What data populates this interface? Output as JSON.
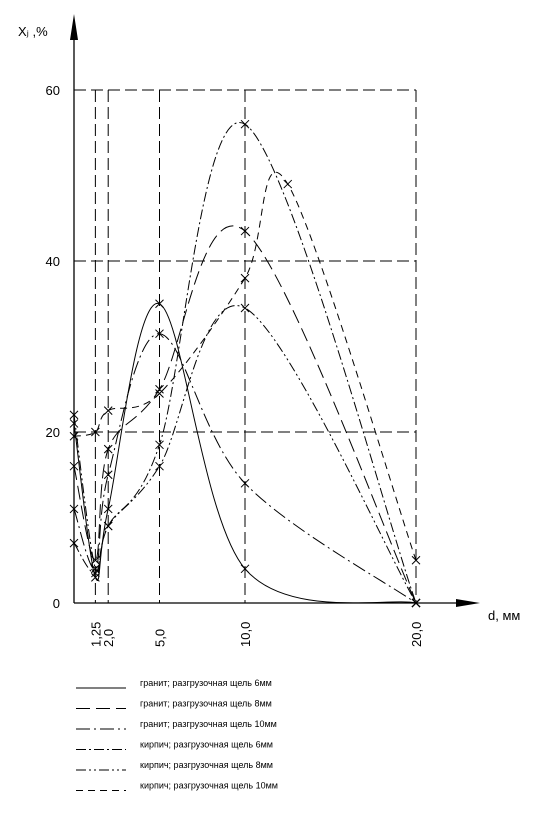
{
  "chart_data": {
    "type": "line",
    "ylabel": "Xⱼ ,%",
    "xlabel": "d, мм",
    "ylim": [
      0,
      60
    ],
    "xlim": [
      0,
      20
    ],
    "y_ticks": [
      0,
      20,
      40,
      60
    ],
    "x_ticks": [
      {
        "value": 1.25,
        "label": "1,25"
      },
      {
        "value": 2.0,
        "label": "2,0"
      },
      {
        "value": 5.0,
        "label": "5,0"
      },
      {
        "value": 10.0,
        "label": "10,0"
      },
      {
        "value": 20.0,
        "label": "20,0"
      }
    ],
    "grid": true,
    "legend_position": "bottom",
    "series": [
      {
        "name": "гранит; разгрузочная щель 6мм",
        "dash": "",
        "x": [
          0,
          1.25,
          2.0,
          5.0,
          10.0,
          20.0
        ],
        "y": [
          21,
          3,
          11,
          35,
          4,
          0
        ]
      },
      {
        "name": "гранит; разгрузочная щель 8мм",
        "dash": "14,6",
        "x": [
          0,
          1.25,
          2.0,
          5.0,
          10.0,
          20.0
        ],
        "y": [
          16,
          5,
          18,
          25,
          43.5,
          0
        ]
      },
      {
        "name": "гранит; разгрузочная щель 10мм",
        "dash": "14,4,2,4",
        "x": [
          0,
          1.25,
          2.0,
          5.0,
          10.0,
          20.0
        ],
        "y": [
          11,
          4,
          15,
          31.5,
          14,
          0
        ]
      },
      {
        "name": "кирпич; разгрузочная щель 6мм",
        "dash": "10,3,2,3",
        "x": [
          0,
          1.25,
          2.0,
          5.0,
          10.0,
          20.0
        ],
        "y": [
          7,
          3.5,
          9,
          18.5,
          56,
          0
        ]
      },
      {
        "name": "кирпич; разгрузочная щель 8мм",
        "dash": "10,3,2,3,2,3",
        "x": [
          0,
          1.25,
          2.0,
          5.0,
          10.0,
          20.0
        ],
        "y": [
          22,
          4,
          9,
          16,
          34.5,
          0
        ]
      },
      {
        "name": "кирпич; разгрузочная щель 10мм",
        "dash": "7,5",
        "x": [
          0,
          1.25,
          2.0,
          5.0,
          10.0,
          12.5,
          20.0
        ],
        "y": [
          19.5,
          20,
          22.5,
          24.5,
          38,
          49,
          5
        ]
      }
    ]
  }
}
